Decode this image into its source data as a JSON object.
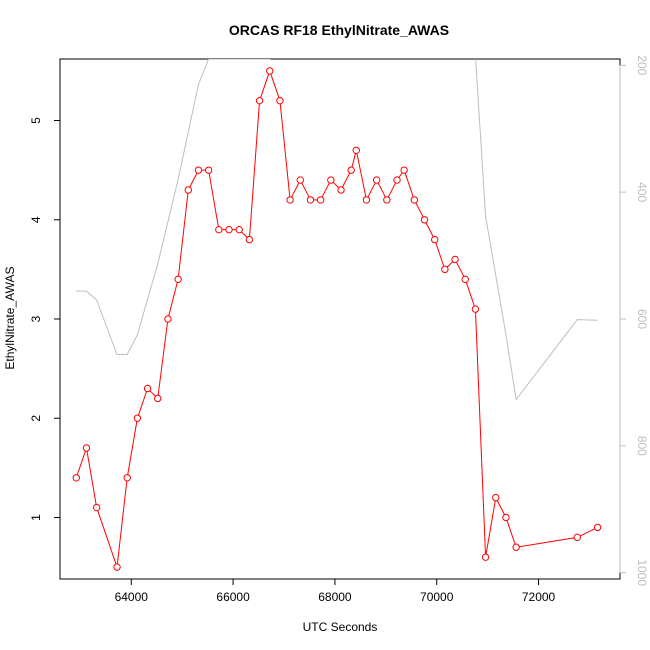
{
  "chart_data": {
    "type": "line",
    "title": "ORCAS RF18 EthylNitrate_AWAS",
    "xlabel": "UTC Seconds",
    "ylabel": "EthylNitrate_AWAS",
    "xlim": [
      62600,
      73600
    ],
    "ylim": [
      0.38,
      5.62
    ],
    "y2lim": [
      1010,
      190
    ],
    "x_ticks": [
      64000,
      66000,
      68000,
      70000,
      72000
    ],
    "y_ticks": [
      1,
      2,
      3,
      4,
      5
    ],
    "y2_ticks": [
      200,
      400,
      600,
      800,
      1000
    ],
    "x_tick_labels": [
      "64000",
      "66000",
      "68000",
      "70000",
      "72000"
    ],
    "y_tick_labels": [
      "1",
      "2",
      "3",
      "4",
      "5"
    ],
    "y2_tick_labels": [
      "200",
      "400",
      "600",
      "800",
      "1000"
    ],
    "grid": false,
    "colors": {
      "series": "#ff0000",
      "background_trace": "#bebebe"
    },
    "series": [
      {
        "role": "primary",
        "marker": "open-circle",
        "x": [
          62920,
          63120,
          63320,
          63720,
          63920,
          64120,
          64320,
          64520,
          64720,
          64920,
          65120,
          65320,
          65520,
          65720,
          65920,
          66120,
          66320,
          66520,
          66720,
          66920,
          67120,
          67320,
          67520,
          67720,
          67920,
          68120,
          68320,
          68420,
          68620,
          68820,
          69020,
          69220,
          69360,
          69560,
          69760,
          69960,
          70160,
          70360,
          70560,
          70760,
          70960,
          71160,
          71360,
          71560,
          72760,
          73160
        ],
        "y": [
          1.4,
          1.7,
          1.1,
          0.5,
          1.4,
          2.0,
          2.3,
          2.2,
          3.0,
          3.4,
          4.3,
          4.5,
          4.5,
          3.9,
          3.9,
          3.9,
          3.8,
          5.2,
          5.5,
          5.2,
          4.2,
          4.4,
          4.2,
          4.2,
          4.4,
          4.3,
          4.5,
          4.7,
          4.2,
          4.4,
          4.2,
          4.4,
          4.5,
          4.2,
          4.0,
          3.8,
          3.5,
          3.6,
          3.4,
          3.1,
          0.6,
          1.2,
          1.0,
          0.7,
          0.8,
          0.9
        ]
      },
      {
        "role": "secondary-axis-trace",
        "x": [
          62920,
          63120,
          63320,
          63720,
          63920,
          64120,
          64520,
          64920,
          65320,
          65520,
          66520,
          66720,
          66920,
          67120,
          68820,
          68820,
          68820,
          70760,
          70960,
          71360,
          71560,
          72760,
          73160
        ],
        "y": [
          556,
          556,
          570,
          656,
          656,
          625,
          513,
          380,
          230,
          190,
          190,
          190,
          185,
          185,
          185,
          190,
          185,
          185,
          438,
          625,
          727,
          601,
          602
        ]
      }
    ]
  }
}
